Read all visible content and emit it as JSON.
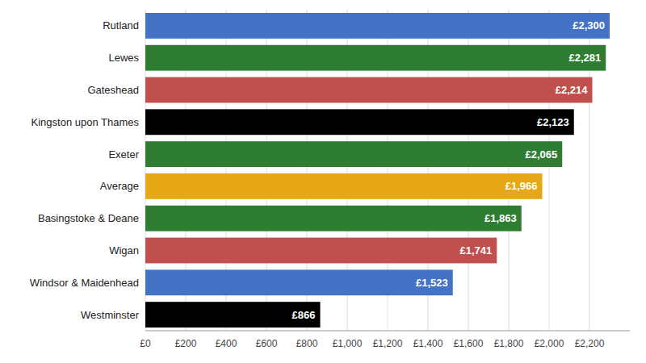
{
  "chart_data": {
    "type": "bar",
    "orientation": "horizontal",
    "categories": [
      "Westminster",
      "Windsor & Maidenhead",
      "Wigan",
      "Basingstoke & Deane",
      "Average",
      "Exeter",
      "Kingston upon Thames",
      "Gateshead",
      "Lewes",
      "Rutland"
    ],
    "values": [
      866,
      1523,
      1741,
      1863,
      1966,
      2065,
      2123,
      2214,
      2281,
      2300
    ],
    "value_labels": [
      "£866",
      "£1,523",
      "£1,741",
      "£1,863",
      "£1,966",
      "£2,065",
      "£2,123",
      "£2,214",
      "£2,281",
      "£2,300"
    ],
    "colors": [
      "#000000",
      "#4472c4",
      "#c0504d",
      "#2e7d32",
      "#e6a817",
      "#2e7d32",
      "#000000",
      "#c0504d",
      "#2e7d32",
      "#4472c4"
    ],
    "xlim": [
      0,
      2400
    ],
    "xticks": [
      {
        "value": 0,
        "label": "£0"
      },
      {
        "value": 200,
        "label": "£200"
      },
      {
        "value": 400,
        "label": "£400"
      },
      {
        "value": 600,
        "label": "£600"
      },
      {
        "value": 800,
        "label": "£800"
      },
      {
        "value": 1000,
        "label": "£1,000"
      },
      {
        "value": 1200,
        "label": "£1,200"
      },
      {
        "value": 1400,
        "label": "£1,400"
      },
      {
        "value": 1600,
        "label": "£1,600"
      },
      {
        "value": 1800,
        "label": "£1,800"
      },
      {
        "value": 2000,
        "label": "£2,000"
      },
      {
        "value": 2200,
        "label": "£2,200"
      }
    ],
    "grid": true,
    "data_labels": true
  }
}
